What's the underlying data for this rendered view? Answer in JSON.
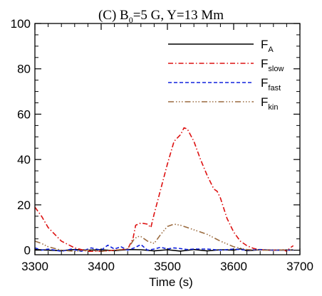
{
  "chart_data": {
    "type": "line",
    "title": {
      "main": "(C) B",
      "sub": "0",
      "rest": "=5 G,   Y=13 Mm"
    },
    "xlabel": "Time (s)",
    "ylabel": "",
    "xlim": [
      3300,
      3700
    ],
    "ylim": [
      -2,
      100
    ],
    "xticks": [
      3300,
      3400,
      3500,
      3600,
      3700
    ],
    "yticks": [
      0,
      20,
      40,
      60,
      80,
      100
    ],
    "grid": false,
    "legend_position": "top-right",
    "series": [
      {
        "name": "F",
        "name_sub": "A",
        "color": "#000000",
        "dash": "",
        "width": 1.6,
        "x": [
          3300,
          3320,
          3340,
          3360,
          3380,
          3400,
          3420,
          3440,
          3460,
          3480,
          3500,
          3520,
          3540,
          3560,
          3580,
          3600,
          3610,
          3620,
          3640,
          3660,
          3690
        ],
        "y": [
          0.3,
          0,
          -0.2,
          0.3,
          0,
          0.2,
          -0.2,
          0.3,
          0.2,
          -0.3,
          0.2,
          -0.4,
          0.3,
          -0.3,
          0.2,
          0,
          0.6,
          -0.2,
          0.2,
          0,
          0.1
        ]
      },
      {
        "name": "F",
        "name_sub": "slow",
        "color": "#dd1111",
        "dash": "7,3,1.5,3",
        "width": 1.6,
        "x": [
          3300,
          3310,
          3320,
          3340,
          3360,
          3380,
          3400,
          3420,
          3440,
          3448,
          3452,
          3460,
          3470,
          3475,
          3480,
          3490,
          3500,
          3510,
          3520,
          3525,
          3530,
          3540,
          3550,
          3560,
          3570,
          3575,
          3580,
          3590,
          3600,
          3610,
          3620,
          3630,
          3640,
          3660,
          3675,
          3680,
          3685,
          3690
        ],
        "y": [
          19,
          15,
          10,
          4,
          1,
          -0.5,
          -0.5,
          0,
          0.5,
          5,
          11,
          12,
          11.5,
          10,
          16,
          27,
          38,
          48,
          51,
          54,
          53.5,
          48,
          40,
          33,
          27,
          26,
          23,
          14,
          8,
          4,
          2,
          0.8,
          0.2,
          0,
          0.2,
          -0.5,
          1,
          2
        ]
      },
      {
        "name": "F",
        "name_sub": "fast",
        "color": "#1122dd",
        "dash": "5,3",
        "width": 1.6,
        "x": [
          3300,
          3310,
          3320,
          3340,
          3355,
          3370,
          3385,
          3400,
          3410,
          3420,
          3430,
          3440,
          3450,
          3460,
          3470,
          3480,
          3490,
          3500,
          3510,
          3520,
          3530,
          3540,
          3560,
          3580,
          3600,
          3620,
          3640,
          3660,
          3690
        ],
        "y": [
          1,
          0,
          0.5,
          -0.5,
          0.5,
          -0.5,
          1,
          0,
          2.2,
          0.5,
          1.5,
          0,
          1,
          2.5,
          0,
          0.5,
          1.3,
          0.5,
          1,
          0.7,
          0.3,
          0.5,
          0.5,
          0,
          0.5,
          0,
          0.3,
          0,
          0
        ]
      },
      {
        "name": "F",
        "name_sub": "kin",
        "color": "#9a6a3e",
        "dash": "8,3,1.5,2.5,1.5,2.5,1.5,3",
        "width": 1.6,
        "x": [
          3300,
          3310,
          3320,
          3340,
          3360,
          3380,
          3400,
          3420,
          3440,
          3450,
          3455,
          3460,
          3470,
          3480,
          3490,
          3500,
          3510,
          3520,
          3530,
          3540,
          3550,
          3560,
          3580,
          3600,
          3620,
          3640,
          3660,
          3690
        ],
        "y": [
          4,
          3,
          1.5,
          0,
          -0.5,
          0,
          -0.5,
          0,
          0.5,
          5,
          6,
          6,
          4,
          3,
          7,
          10.5,
          11.5,
          11,
          10,
          9,
          8,
          7,
          4,
          1.5,
          0.3,
          0,
          0.1,
          0
        ]
      }
    ]
  }
}
